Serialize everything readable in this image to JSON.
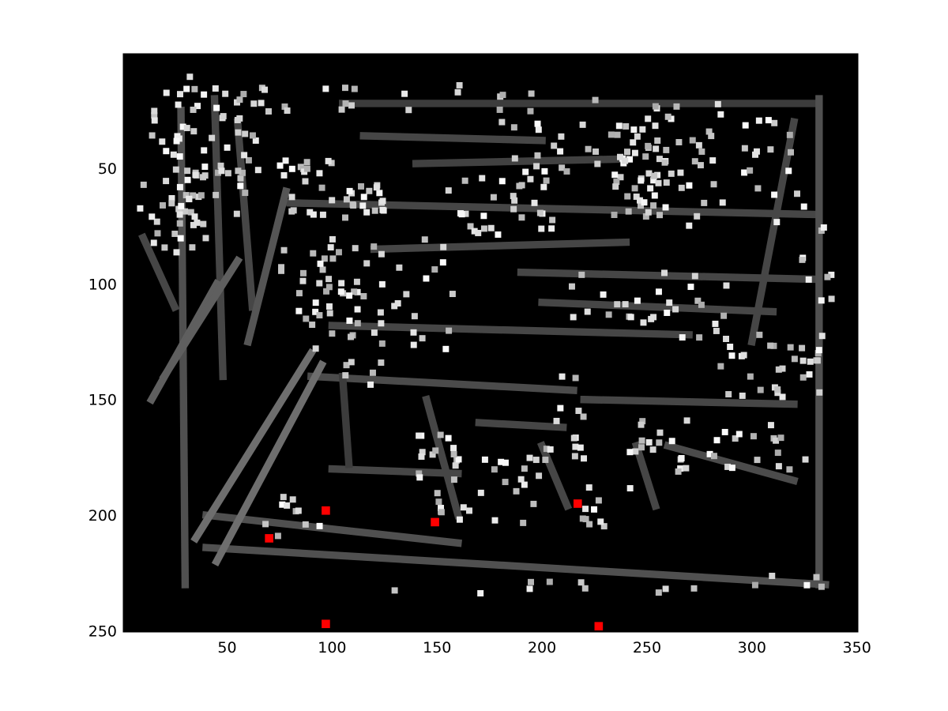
{
  "figure": {
    "background": "#ffffff",
    "image_colormap": "gray",
    "marker_color": "#ff0000"
  },
  "chart_data": {
    "type": "scatter",
    "title": "",
    "xlabel": "",
    "ylabel": "",
    "xlim": [
      0.5,
      350.5
    ],
    "ylim": [
      250.5,
      0.5
    ],
    "y_axis_direction": "reversed (image coordinates, origin top-left)",
    "grid": false,
    "legend": "none",
    "x_ticks": [
      50,
      100,
      150,
      200,
      250,
      300,
      350
    ],
    "y_ticks": [
      50,
      100,
      150,
      200,
      250
    ],
    "x_tick_labels": [
      "50",
      "100",
      "150",
      "200",
      "250",
      "300",
      "350"
    ],
    "y_tick_labels": [
      "50",
      "100",
      "150",
      "200",
      "250"
    ],
    "background_image": {
      "description": "grayscale edge-segment image with dark background, gray line segments and light square blobs",
      "x_range": [
        1,
        350
      ],
      "y_range": [
        1,
        250
      ],
      "segments": [
        [
          28,
          25,
          30,
          230,
          80
        ],
        [
          44,
          20,
          48,
          140,
          70
        ],
        [
          55,
          30,
          62,
          110,
          70
        ],
        [
          105,
          22,
          330,
          22,
          60
        ],
        [
          115,
          36,
          200,
          38,
          70
        ],
        [
          140,
          48,
          240,
          46,
          65
        ],
        [
          80,
          65,
          330,
          70,
          70
        ],
        [
          120,
          85,
          240,
          82,
          70
        ],
        [
          190,
          95,
          330,
          98,
          70
        ],
        [
          200,
          108,
          310,
          112,
          70
        ],
        [
          100,
          118,
          270,
          122,
          70
        ],
        [
          90,
          140,
          215,
          146,
          75
        ],
        [
          220,
          150,
          320,
          152,
          70
        ],
        [
          100,
          180,
          160,
          182,
          70
        ],
        [
          40,
          200,
          160,
          212,
          80
        ],
        [
          40,
          214,
          335,
          230,
          80
        ],
        [
          200,
          170,
          212,
          196,
          70
        ],
        [
          245,
          170,
          254,
          196,
          70
        ],
        [
          105,
          140,
          108,
          178,
          60
        ],
        [
          14,
          150,
          45,
          100,
          95
        ],
        [
          20,
          140,
          55,
          90,
          95
        ],
        [
          35,
          210,
          90,
          130,
          110
        ],
        [
          45,
          220,
          95,
          135,
          110
        ],
        [
          60,
          125,
          78,
          60,
          85
        ],
        [
          300,
          125,
          320,
          30,
          70
        ],
        [
          332,
          20,
          332,
          230,
          80
        ],
        [
          260,
          170,
          320,
          185,
          75
        ],
        [
          170,
          160,
          210,
          162,
          70
        ],
        [
          145,
          150,
          160,
          200,
          70
        ],
        [
          10,
          80,
          25,
          110,
          70
        ]
      ],
      "blob_clusters": [
        [
          40,
          40,
          25,
          30,
          60
        ],
        [
          30,
          70,
          10,
          18,
          20
        ],
        [
          100,
          60,
          25,
          14,
          40
        ],
        [
          125,
          105,
          35,
          25,
          40
        ],
        [
          90,
          100,
          15,
          20,
          20
        ],
        [
          180,
          65,
          25,
          14,
          30
        ],
        [
          220,
          45,
          40,
          15,
          30
        ],
        [
          245,
          55,
          12,
          20,
          25
        ],
        [
          290,
          55,
          40,
          20,
          35
        ],
        [
          250,
          110,
          40,
          15,
          30
        ],
        [
          310,
          135,
          25,
          15,
          30
        ],
        [
          285,
          170,
          45,
          12,
          35
        ],
        [
          175,
          190,
          25,
          15,
          25
        ],
        [
          150,
          175,
          12,
          10,
          15
        ],
        [
          80,
          200,
          15,
          10,
          10
        ],
        [
          230,
          195,
          12,
          10,
          10
        ],
        [
          210,
          160,
          15,
          20,
          15
        ],
        [
          20,
          60,
          12,
          25,
          15
        ],
        [
          270,
          35,
          45,
          15,
          25
        ],
        [
          150,
          20,
          60,
          6,
          15
        ],
        [
          330,
          100,
          8,
          25,
          10
        ],
        [
          60,
          20,
          20,
          6,
          8
        ],
        [
          120,
          125,
          15,
          20,
          12
        ],
        [
          220,
          230,
          120,
          4,
          15
        ]
      ]
    },
    "series": [
      {
        "marker": "filled-square",
        "color": "#ff0000",
        "x": [
          97,
          70,
          149,
          217,
          97,
          227
        ],
        "y": [
          198,
          210,
          203,
          195,
          247,
          248
        ]
      }
    ]
  }
}
